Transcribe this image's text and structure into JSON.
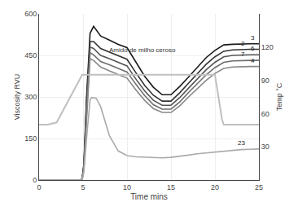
{
  "chart_data": {
    "type": "line",
    "xlabel": "Time mins",
    "ylabel": "Viscosity RVU",
    "y2label": "Temp °C",
    "xlim": [
      0,
      25
    ],
    "ylim": [
      0,
      600
    ],
    "y2lim": [
      0,
      150
    ],
    "xticks": [
      0,
      5,
      10,
      15,
      20,
      25
    ],
    "yticks": [
      0,
      150,
      300,
      450,
      600
    ],
    "y2ticks": [
      30,
      60,
      90,
      120
    ],
    "grid": true,
    "annotations": [
      {
        "text": "Amido de milho ceroso",
        "x": 7.8,
        "y": 470
      }
    ],
    "series": [
      {
        "axis": "y2",
        "color": "#c0c0c0",
        "x": [
          0,
          1,
          2,
          4.9,
          10,
          14.8,
          20,
          20.8,
          21,
          25
        ],
        "values": [
          50,
          50,
          52,
          95,
          95,
          95,
          95,
          55,
          50,
          50
        ]
      },
      {
        "name": "3",
        "color": "#1a1a1a",
        "x": [
          0,
          4.7,
          4.9,
          5.1,
          5.4,
          5.8,
          6.2,
          7.0,
          8.0,
          9.0,
          10.0,
          11.0,
          12.0,
          13.0,
          14.0,
          15.0,
          16.0,
          17.0,
          18.0,
          19.0,
          20.0,
          21.0,
          22.0,
          23.0,
          24.0,
          25.0
        ],
        "values": [
          0,
          0,
          5,
          60,
          300,
          530,
          555,
          520,
          505,
          490,
          478,
          428,
          375,
          335,
          308,
          308,
          338,
          372,
          408,
          442,
          468,
          488,
          490,
          492,
          492,
          492
        ]
      },
      {
        "name": "2",
        "color": "#333333",
        "x": [
          0,
          4.7,
          4.9,
          5.1,
          5.4,
          5.8,
          6.2,
          7.0,
          8.0,
          9.0,
          10.0,
          11.0,
          12.0,
          13.0,
          14.0,
          15.0,
          16.0,
          17.0,
          18.0,
          19.0,
          20.0,
          21.0,
          22.0,
          23.0,
          24.0,
          25.0
        ],
        "values": [
          0,
          0,
          5,
          55,
          280,
          500,
          500,
          475,
          462,
          448,
          436,
          388,
          342,
          306,
          285,
          285,
          315,
          350,
          385,
          418,
          445,
          465,
          470,
          472,
          472,
          472
        ]
      },
      {
        "name": "6",
        "color": "#555555",
        "x": [
          0,
          4.7,
          4.9,
          5.1,
          5.4,
          5.8,
          6.2,
          7.0,
          8.0,
          9.0,
          10.0,
          11.0,
          12.0,
          13.0,
          14.0,
          15.0,
          16.0,
          17.0,
          18.0,
          19.0,
          20.0,
          21.0,
          22.0,
          23.0,
          24.0,
          25.0
        ],
        "values": [
          0,
          0,
          4,
          50,
          260,
          480,
          475,
          450,
          438,
          424,
          412,
          365,
          322,
          288,
          270,
          270,
          298,
          332,
          366,
          398,
          425,
          445,
          450,
          452,
          452,
          452
        ]
      },
      {
        "name": "7",
        "color": "#6e6e6e",
        "x": [
          0,
          4.7,
          4.9,
          5.1,
          5.4,
          5.8,
          6.2,
          7.0,
          8.0,
          9.0,
          10.0,
          11.0,
          12.0,
          13.0,
          14.0,
          15.0,
          16.0,
          17.0,
          18.0,
          19.0,
          20.0,
          21.0,
          22.0,
          23.0,
          24.0,
          25.0
        ],
        "values": [
          0,
          0,
          3,
          45,
          240,
          460,
          452,
          428,
          416,
          402,
          390,
          346,
          305,
          272,
          256,
          256,
          282,
          316,
          348,
          380,
          406,
          425,
          430,
          432,
          432,
          432
        ]
      },
      {
        "name": "4",
        "color": "#888888",
        "x": [
          0,
          4.7,
          4.9,
          5.1,
          5.4,
          5.8,
          6.2,
          7.0,
          8.0,
          9.0,
          10.0,
          11.0,
          12.0,
          13.0,
          14.0,
          15.0,
          16.0,
          17.0,
          18.0,
          19.0,
          20.0,
          21.0,
          22.0,
          23.0,
          24.0,
          25.0
        ],
        "values": [
          0,
          0,
          3,
          38,
          215,
          438,
          432,
          408,
          394,
          380,
          368,
          326,
          288,
          258,
          244,
          244,
          268,
          300,
          330,
          360,
          385,
          403,
          408,
          410,
          410,
          410
        ]
      },
      {
        "name": "23",
        "color": "#aaaaaa",
        "x": [
          0,
          4.7,
          4.9,
          5.1,
          5.4,
          5.8,
          6.0,
          6.5,
          7.0,
          8.0,
          9.0,
          10.0,
          11.0,
          12.0,
          13.0,
          14.0,
          15.0,
          16.0,
          17.0,
          18.0,
          19.0,
          20.0,
          21.0,
          22.0,
          23.0,
          24.0,
          25.0
        ],
        "values": [
          0,
          0,
          3,
          30,
          150,
          290,
          298,
          295,
          265,
          160,
          105,
          88,
          84,
          82,
          80,
          80,
          82,
          85,
          90,
          95,
          98,
          100,
          105,
          108,
          110,
          111,
          112
        ]
      }
    ]
  }
}
